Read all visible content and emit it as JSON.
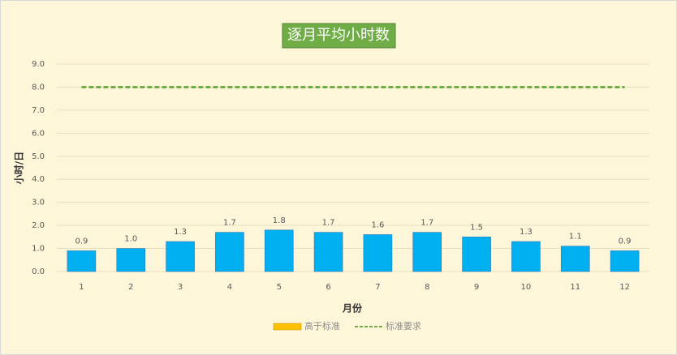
{
  "chart_data": {
    "type": "bar",
    "title": "逐月平均小时数",
    "x_label": "月份",
    "y_label": "小时/日",
    "categories": [
      "1",
      "2",
      "3",
      "4",
      "5",
      "6",
      "7",
      "8",
      "9",
      "10",
      "11",
      "12"
    ],
    "series": [
      {
        "type": "bar",
        "color": "#00b0f0",
        "values": [
          0.9,
          1.0,
          1.3,
          1.7,
          1.8,
          1.7,
          1.6,
          1.7,
          1.5,
          1.3,
          1.1,
          0.9
        ],
        "value_labels": [
          "0.9",
          "1.0",
          "1.3",
          "1.7",
          "1.8",
          "1.7",
          "1.6",
          "1.7",
          "1.5",
          "1.3",
          "1.1",
          "0.9"
        ]
      },
      {
        "name": "高于标准",
        "type": "bar",
        "color": "#ffc000",
        "values": [
          null,
          null,
          null,
          null,
          null,
          null,
          null,
          null,
          null,
          null,
          null,
          null
        ]
      },
      {
        "name": "标准要求",
        "type": "line",
        "dashed": true,
        "color": "#70ad47",
        "values": [
          8,
          8,
          8,
          8,
          8,
          8,
          8,
          8,
          8,
          8,
          8,
          8
        ]
      }
    ],
    "ylim": [
      0,
      9
    ],
    "yticks": [
      {
        "value": 0,
        "label": "0.0"
      },
      {
        "value": 1,
        "label": "1.0"
      },
      {
        "value": 2,
        "label": "2.0"
      },
      {
        "value": 3,
        "label": "3.0"
      },
      {
        "value": 4,
        "label": "4.0"
      },
      {
        "value": 5,
        "label": "5.0"
      },
      {
        "value": 6,
        "label": "6.0"
      },
      {
        "value": 7,
        "label": "7.0"
      },
      {
        "value": 8,
        "label": "8.0"
      },
      {
        "value": 9,
        "label": "9.0"
      }
    ],
    "grid": true,
    "legend": "bottom"
  }
}
